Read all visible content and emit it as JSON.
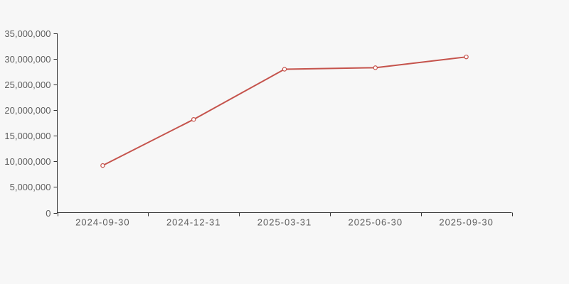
{
  "chart_data": {
    "type": "line",
    "title": "",
    "xlabel": "",
    "ylabel": "",
    "categories": [
      "2024-09-30",
      "2024-12-31",
      "2025-03-31",
      "2025-06-30",
      "2025-09-30"
    ],
    "series": [
      {
        "name": "series-1",
        "values": [
          9200000,
          18200000,
          28000000,
          28300000,
          30400000
        ]
      }
    ],
    "ylim": [
      0,
      35000000
    ],
    "y_tick_step": 5000000,
    "y_tick_labels": [
      "0",
      "5,000,000",
      "10,000,000",
      "15,000,000",
      "20,000,000",
      "25,000,000",
      "30,000,000",
      "35,000,000"
    ],
    "grid": false,
    "legend_position": "none",
    "marker_shape": "hollow-circle",
    "colors": {
      "line": "#c5534c",
      "marker_fill": "#ffffff",
      "axis": "#333333",
      "label": "#5f5f5f",
      "background": "#f7f7f7"
    }
  }
}
